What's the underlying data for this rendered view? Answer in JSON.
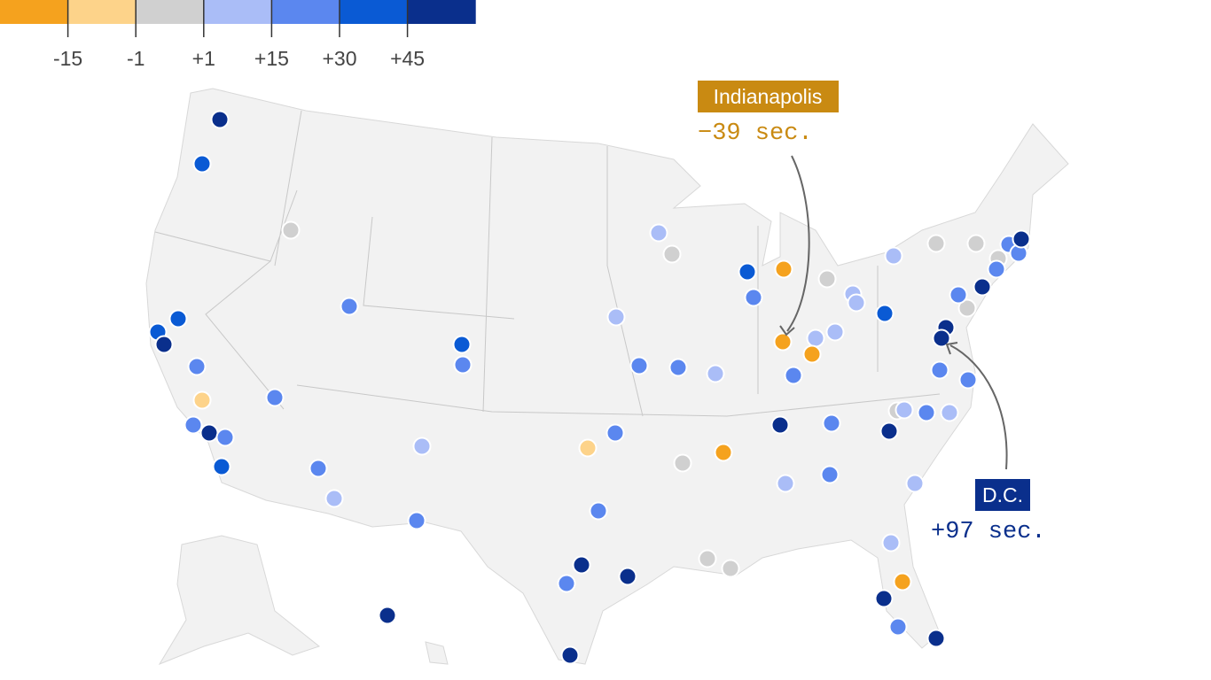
{
  "legend": {
    "colors": [
      "#f5a21e",
      "#fdd38a",
      "#d0d0d0",
      "#aabdf7",
      "#5b87ef",
      "#0a5ad4",
      "#0a2f8c"
    ],
    "labels": [
      "-15",
      "-1",
      "+1",
      "+15",
      "+30",
      "+45"
    ]
  },
  "annotations": [
    {
      "label": "Indianapolis",
      "value": "−39 sec."
    },
    {
      "label": "D.C.",
      "value": "+97 sec."
    }
  ]
}
